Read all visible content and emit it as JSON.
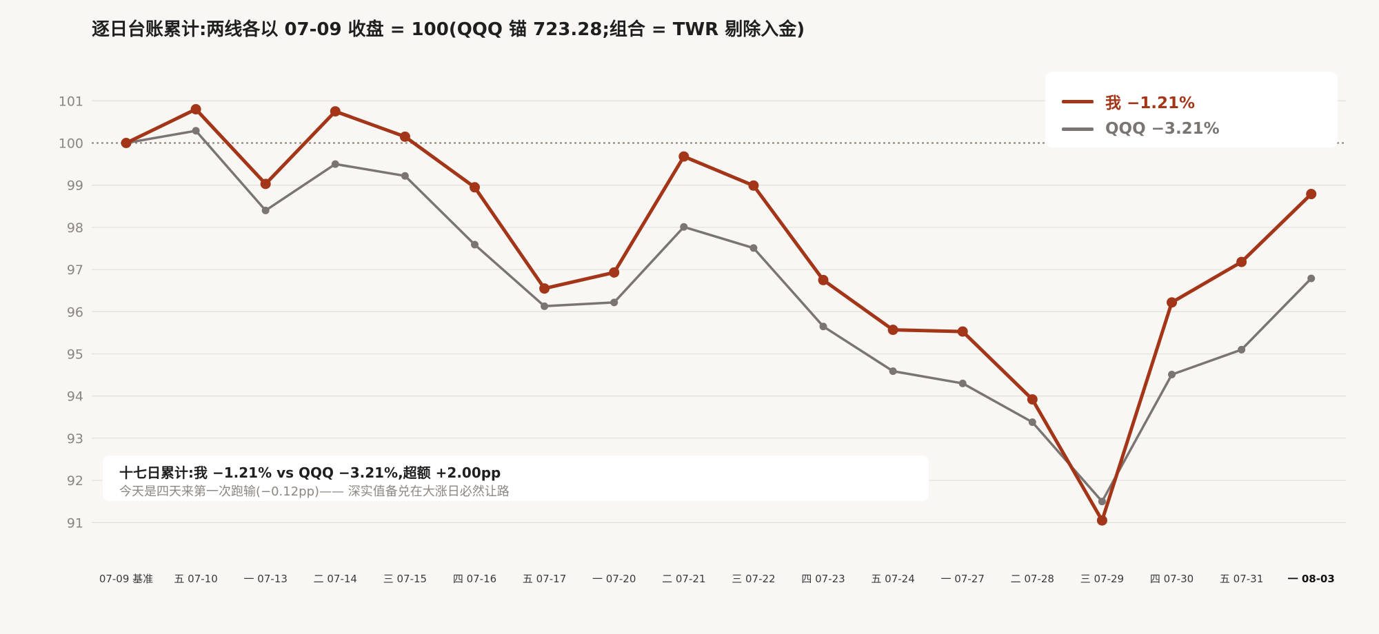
{
  "colors": {
    "me": "#a33518",
    "qqq": "#7a7572",
    "grid": "#e6e2dc",
    "baseline": "#8a7d70"
  },
  "chart_data": {
    "type": "line",
    "title": "逐日台账累计:两线各以 07-09 收盘 = 100(QQQ 锚 723.28;组合 = TWR 剔除入金)",
    "xlabel": "",
    "ylabel": "",
    "ylim": [
      90.6,
      102.0
    ],
    "yticks": [
      91,
      92,
      93,
      94,
      95,
      96,
      97,
      98,
      99,
      100,
      101
    ],
    "baseline": 100,
    "grid": true,
    "legend_position": "top-right",
    "categories": [
      "07-09 基准",
      "五 07-10",
      "一 07-13",
      "二 07-14",
      "三 07-15",
      "四 07-16",
      "五 07-17",
      "一 07-20",
      "二 07-21",
      "三 07-22",
      "四 07-23",
      "五 07-24",
      "一 07-27",
      "二 07-28",
      "三 07-29",
      "四 07-30",
      "五 07-31",
      "一 08-03"
    ],
    "series": [
      {
        "name": "我 −1.21%",
        "values": [
          100.0,
          100.8,
          99.03,
          100.75,
          100.15,
          98.95,
          96.55,
          96.93,
          99.68,
          98.99,
          96.75,
          95.57,
          95.53,
          93.92,
          91.05,
          96.22,
          97.18,
          98.79
        ]
      },
      {
        "name": "QQQ −3.21%",
        "values": [
          100.0,
          100.29,
          98.4,
          99.5,
          99.22,
          97.59,
          96.13,
          96.22,
          98.01,
          97.51,
          95.65,
          94.59,
          94.3,
          93.38,
          91.5,
          94.51,
          95.1,
          96.79
        ]
      }
    ]
  },
  "legend": {
    "me_label": "我 −1.21%",
    "qqq_label": "QQQ −3.21%"
  },
  "note": {
    "line1": "十七日累计:我 −1.21% vs QQQ −3.21%,超额 +2.00pp",
    "line2": "今天是四天来第一次跑输(−0.12pp)—— 深实值备兑在大涨日必然让路"
  }
}
